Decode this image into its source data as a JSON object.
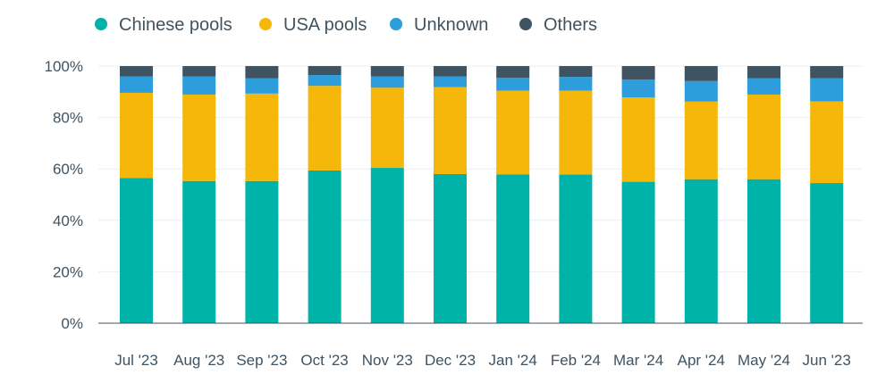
{
  "chart_data": {
    "type": "bar",
    "stacked": true,
    "categories": [
      "Jul '23",
      "Aug '23",
      "Sep '23",
      "Oct '23",
      "Nov '23",
      "Dec '23",
      "Jan '24",
      "Feb '24",
      "Mar '24",
      "Apr '24",
      "May '24",
      "Jun '23"
    ],
    "series": [
      {
        "name": "Chinese pools",
        "color": "#00b3a9",
        "values": [
          56.5,
          55.3,
          55.3,
          59.4,
          60.4,
          58.0,
          57.9,
          57.8,
          55.0,
          56.0,
          56.0,
          54.5
        ]
      },
      {
        "name": "USA pools",
        "color": "#f4b70a",
        "values": [
          33.1,
          33.6,
          34.0,
          32.9,
          31.2,
          33.8,
          32.5,
          32.6,
          32.8,
          30.2,
          32.9,
          31.8
        ]
      },
      {
        "name": "Unknown",
        "color": "#2d9ddb",
        "values": [
          6.4,
          7.1,
          5.9,
          4.2,
          4.4,
          4.2,
          5.0,
          5.4,
          7.0,
          8.0,
          6.3,
          9.0
        ]
      },
      {
        "name": "Others",
        "color": "#3f5361",
        "values": [
          4.0,
          4.0,
          4.8,
          3.5,
          4.0,
          4.0,
          4.6,
          4.2,
          5.2,
          5.8,
          4.8,
          4.7
        ]
      }
    ],
    "yticks": [
      "0%",
      "20%",
      "40%",
      "60%",
      "80%",
      "100%"
    ],
    "ylim": [
      0,
      100
    ],
    "grid": true,
    "legend_position": "top-left",
    "title": "",
    "xlabel": "",
    "ylabel": ""
  }
}
